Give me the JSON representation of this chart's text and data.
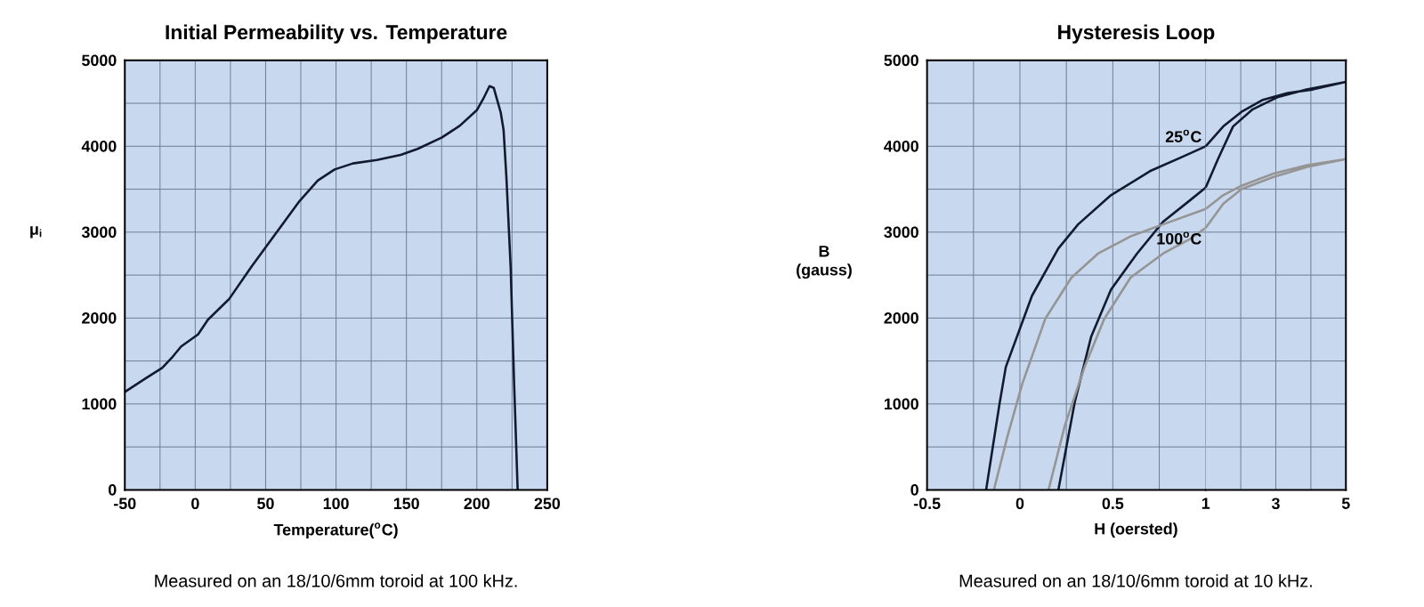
{
  "chart_data": [
    {
      "type": "line",
      "title": "Initial Permeability vs. Temperature",
      "xlabel": "Temperature($^{o}$C)",
      "ylabel": "μ$_{i}$",
      "xlim": [
        -50,
        250
      ],
      "ylim": [
        0,
        5000
      ],
      "xticks": [
        -50,
        {
          "value": -25,
          "label": null
        },
        0,
        {
          "value": 25,
          "label": null
        },
        50,
        {
          "value": 75,
          "label": null
        },
        100,
        {
          "value": 125,
          "label": null
        },
        150,
        {
          "value": 175,
          "label": null
        },
        200,
        {
          "value": 225,
          "label": null
        },
        250
      ],
      "yticks": [
        0,
        {
          "value": 500,
          "label": null
        },
        1000,
        {
          "value": 1500,
          "label": null
        },
        2000,
        {
          "value": 2500,
          "label": null
        },
        3000,
        {
          "value": 3500,
          "label": null
        },
        4000,
        {
          "value": 4500,
          "label": null
        },
        5000
      ],
      "grid": true,
      "color": "#111a2e",
      "x": [
        -50,
        -35,
        -23.5,
        -16,
        -10,
        -4,
        2,
        9,
        24,
        40,
        57,
        74,
        87,
        99,
        112,
        129,
        146,
        158,
        175,
        188,
        200,
        204.5,
        209,
        212,
        217,
        219,
        221,
        224,
        226.5,
        229
      ],
      "values": [
        1140,
        1300,
        1420,
        1550,
        1670,
        1740,
        1810,
        1980,
        2220,
        2600,
        2980,
        3360,
        3600,
        3730,
        3800,
        3840,
        3900,
        3970,
        4100,
        4240,
        4420,
        4550,
        4700,
        4680,
        4390,
        4190,
        3640,
        2600,
        1230,
        0
      ],
      "annotations": [
        "Measured on an 18/10/6mm toroid at 100 kHz."
      ]
    },
    {
      "type": "line",
      "title": "Hysteresis Loop",
      "xlabel": "H (oersted)",
      "ylabel": "B (gauss)",
      "xlim": [
        -0.5,
        1
      ],
      "ylim": [
        0,
        5000
      ],
      "xticks": [
        -0.5,
        {
          "value": -0.25,
          "label": null
        },
        0,
        {
          "value": 0.25,
          "label": null
        },
        0.5,
        {
          "value": 0.75,
          "label": null
        },
        1
      ],
      "yticks": [
        0,
        {
          "value": 500,
          "label": null
        },
        1000,
        {
          "value": 1500,
          "label": null
        },
        2000,
        {
          "value": 2500,
          "label": null
        },
        3000,
        {
          "value": 3500,
          "label": null
        },
        4000,
        {
          "value": 4500,
          "label": null
        },
        5000
      ],
      "grid": true,
      "series": [
        {
          "name": "25$^{o}$C",
          "color": "#111a2e",
          "x": [
            -0.182,
            -0.11,
            -0.076,
            0.065,
            0.207,
            0.313,
            0.49,
            0.7,
            0.878,
            1.0,
            null,
            0.207,
            0.295,
            0.383,
            0.49,
            0.63,
            0.77,
            0.915,
            1.0
          ],
          "values": [
            0,
            1000,
            1430,
            2260,
            2810,
            3090,
            3430,
            3710,
            3880,
            4000,
            null,
            0,
            1020,
            1780,
            2330,
            2750,
            3120,
            3370,
            3520
          ]
        },
        {
          "name": "100$^{o}$C",
          "color": "#959595",
          "x": [
            -0.14,
            -0.07,
            0.012,
            0.136,
            0.277,
            0.42,
            0.595,
            0.77,
            1.0,
            null,
            0.154,
            0.242,
            0.348,
            0.454,
            0.595,
            0.77,
            0.915,
            1.0
          ],
          "values": [
            0,
            600,
            1230,
            1990,
            2470,
            2750,
            2950,
            3090,
            3270,
            null,
            0,
            750,
            1430,
            1990,
            2470,
            2750,
            2920,
            3050
          ]
        }
      ],
      "annotations": [
        "Measured on an 18/10/6mm toroid at 10 kHz."
      ]
    },
    {
      "type": "line",
      "xlim": [
        1,
        5
      ],
      "ylim": [
        0,
        5000
      ],
      "xticks": [
        {
          "value": 2,
          "label": null
        },
        3,
        {
          "value": 4,
          "label": null
        },
        5
      ],
      "yticks": [
        {
          "value": 0,
          "label": null
        },
        {
          "value": 500,
          "label": null
        },
        {
          "value": 1000,
          "label": null
        },
        {
          "value": 1500,
          "label": null
        },
        {
          "value": 2000,
          "label": null
        },
        {
          "value": 2500,
          "label": null
        },
        {
          "value": 3000,
          "label": null
        },
        {
          "value": 3500,
          "label": null
        },
        {
          "value": 4000,
          "label": null
        },
        {
          "value": 4500,
          "label": null
        },
        {
          "value": 5000,
          "label": null
        }
      ],
      "grid": true,
      "tick_labels": "x",
      "series": [
        {
          "color": "#111a2e",
          "x": [
            1.0,
            1.5,
            2.02,
            2.63,
            3.34,
            4.05,
            5,
            null,
            1.0,
            1.35,
            1.78,
            2.34,
            3.04,
            3.88,
            5
          ],
          "values": [
            4000,
            4230,
            4400,
            4540,
            4620,
            4660,
            4750,
            null,
            3520,
            3850,
            4230,
            4430,
            4570,
            4660,
            4750
          ]
        },
        {
          "color": "#959595",
          "x": [
            1.0,
            1.5,
            2.02,
            2.92,
            3.9,
            5,
            null,
            1.0,
            1.5,
            2.02,
            2.92,
            3.9,
            5
          ],
          "values": [
            3270,
            3430,
            3540,
            3680,
            3780,
            3850,
            null,
            3050,
            3330,
            3500,
            3640,
            3760,
            3850
          ]
        }
      ]
    }
  ]
}
